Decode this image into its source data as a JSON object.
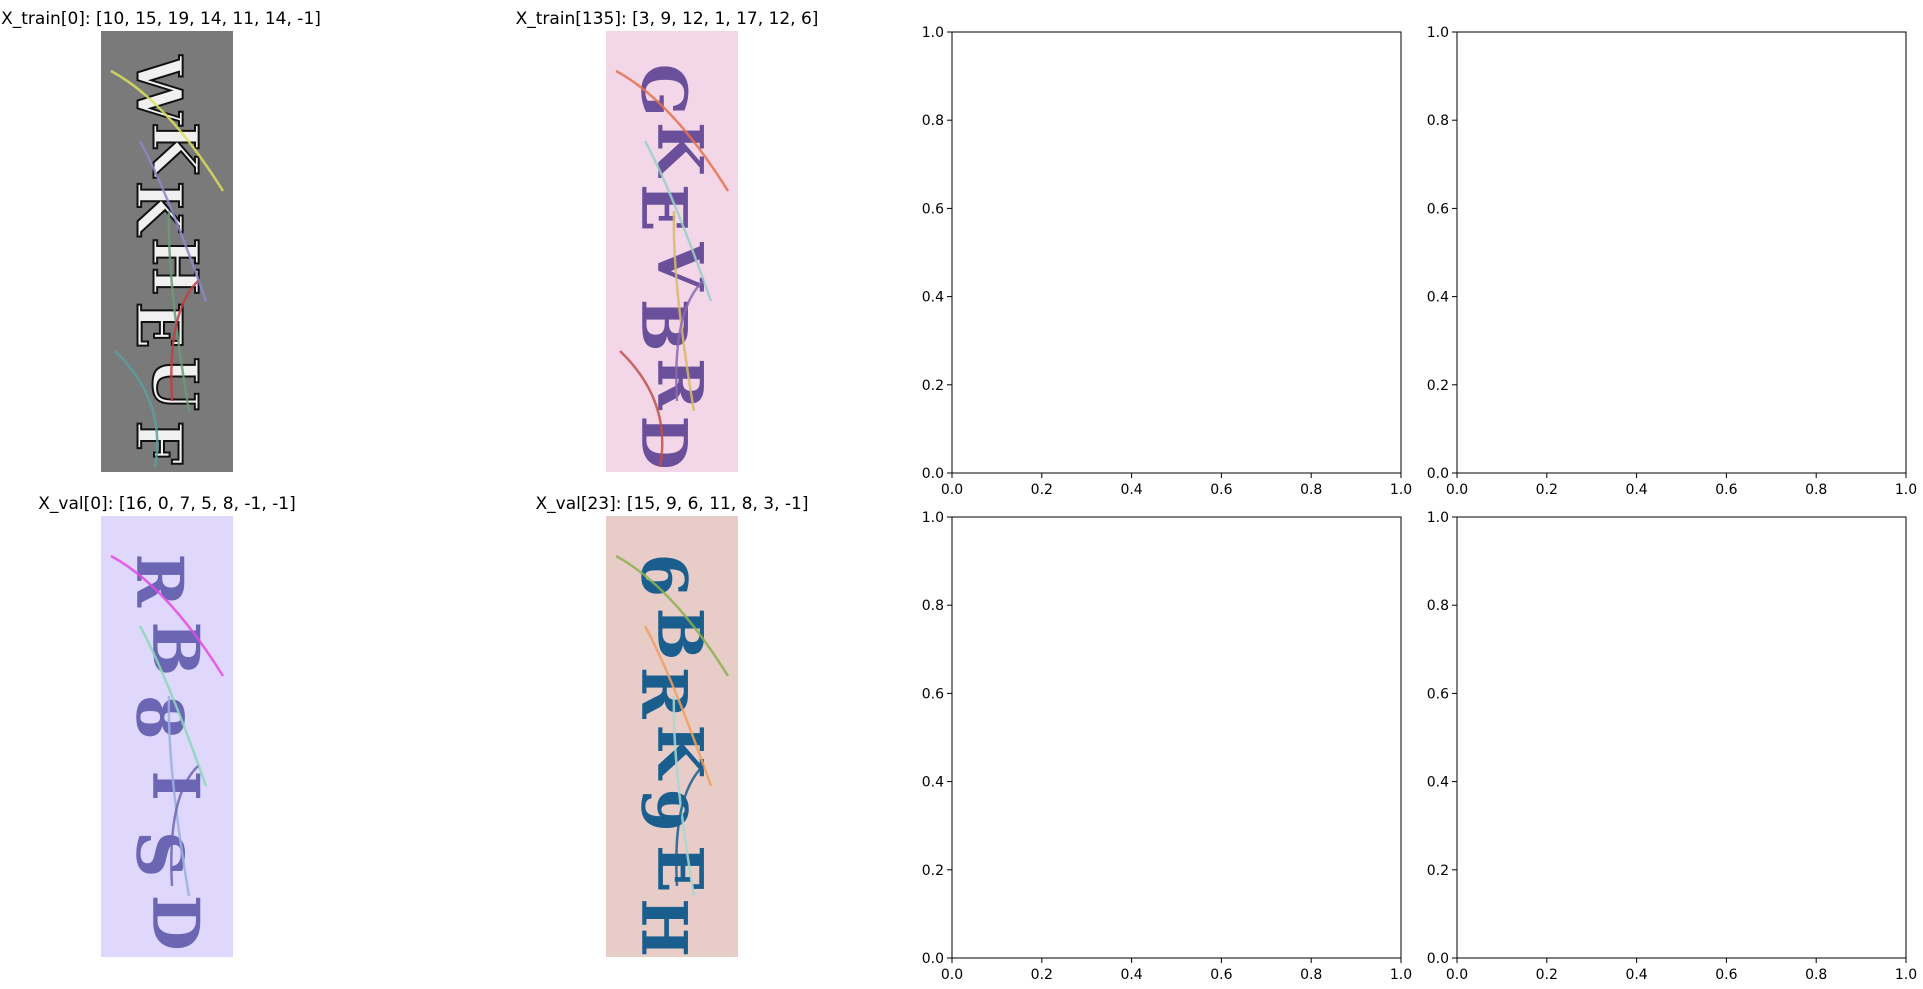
{
  "images": [
    {
      "title": "X_train[0]: [10, 15, 19, 14, 11, 14, -1]",
      "glyphs": "WKKHEUF",
      "bg": "#7a7a7a",
      "ink": "#f0f0f0",
      "outline": "#111111",
      "noise": [
        "#d9e05a",
        "#8a8ac8",
        "#6a9a7a",
        "#c04040",
        "#5aa0a0"
      ]
    },
    {
      "title": "X_train[135]: [3, 9, 12, 1, 17, 12, 6]",
      "glyphs": "GKEVBRD",
      "bg": "#f3d7e9",
      "ink": "#6a4f9a",
      "outline": "#6a4f9a",
      "noise": [
        "#e8714a",
        "#9ad0c8",
        "#d7b86a",
        "#8a6ab0",
        "#c0504a"
      ]
    },
    {
      "title": "X_val[0]: [16, 0, 7, 5, 8, -1, -1]",
      "glyphs": "RB8ISD",
      "bg": "#e0d8fc",
      "ink": "#6a66b4",
      "outline": "#6a66b4",
      "noise": [
        "#e04ae8",
        "#8ad8b8",
        "#9ab0e0",
        "#6a66b4"
      ]
    },
    {
      "title": "X_val[23]: [15, 9, 6, 11, 8, 3, -1]",
      "glyphs": "6BRK9EH",
      "bg": "#e8ccc8",
      "ink": "#1a5e8e",
      "outline": "#1a5e8e",
      "noise": [
        "#8ab050",
        "#f0a060",
        "#a8d8d0",
        "#1a5e8e"
      ]
    }
  ],
  "chart_data": [
    {
      "type": "scatter",
      "xlim": [
        0.0,
        1.0
      ],
      "ylim": [
        0.0,
        1.0
      ],
      "xticks": [
        "0.0",
        "0.2",
        "0.4",
        "0.6",
        "0.8",
        "1.0"
      ],
      "yticks": [
        "0.0",
        "0.2",
        "0.4",
        "0.6",
        "0.8",
        "1.0"
      ],
      "series": []
    },
    {
      "type": "scatter",
      "xlim": [
        0.0,
        1.0
      ],
      "ylim": [
        0.0,
        1.0
      ],
      "xticks": [
        "0.0",
        "0.2",
        "0.4",
        "0.6",
        "0.8",
        "1.0"
      ],
      "yticks": [
        "0.0",
        "0.2",
        "0.4",
        "0.6",
        "0.8",
        "1.0"
      ],
      "series": []
    },
    {
      "type": "scatter",
      "xlim": [
        0.0,
        1.0
      ],
      "ylim": [
        0.0,
        1.0
      ],
      "xticks": [
        "0.0",
        "0.2",
        "0.4",
        "0.6",
        "0.8",
        "1.0"
      ],
      "yticks": [
        "0.0",
        "0.2",
        "0.4",
        "0.6",
        "0.8",
        "1.0"
      ],
      "series": []
    },
    {
      "type": "scatter",
      "xlim": [
        0.0,
        1.0
      ],
      "ylim": [
        0.0,
        1.0
      ],
      "xticks": [
        "0.0",
        "0.2",
        "0.4",
        "0.6",
        "0.8",
        "1.0"
      ],
      "yticks": [
        "0.0",
        "0.2",
        "0.4",
        "0.6",
        "0.8",
        "1.0"
      ],
      "series": []
    }
  ]
}
